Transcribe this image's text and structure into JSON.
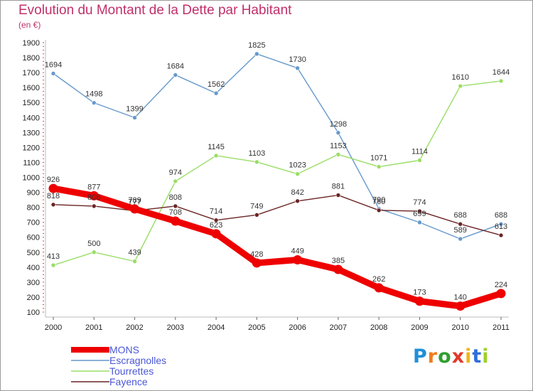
{
  "header": {
    "title": "Evolution du Montant de la Dette par Habitant",
    "subtitle": "(en €)"
  },
  "brand": {
    "logo_text": "Proxiti"
  },
  "chart_data": {
    "type": "line",
    "title": "Evolution du Montant de la Dette par Habitant",
    "subtitle": "(en €)",
    "xlabel": "",
    "ylabel": "",
    "x": [
      "2000",
      "2001",
      "2002",
      "2003",
      "2004",
      "2005",
      "2006",
      "2007",
      "2008",
      "2009",
      "2010",
      "2011"
    ],
    "ylim": [
      100,
      1900
    ],
    "yticks": [
      100,
      200,
      300,
      400,
      500,
      600,
      700,
      800,
      900,
      1000,
      1100,
      1200,
      1300,
      1400,
      1500,
      1600,
      1700,
      1800,
      1900
    ],
    "grid": false,
    "legend_position": "bottom-left",
    "series": [
      {
        "name": "MONS",
        "color": "#ee0000",
        "emphasis": true,
        "values": [
          926,
          877,
          789,
          708,
          623,
          428,
          449,
          385,
          262,
          173,
          140,
          224
        ]
      },
      {
        "name": "Escragnolles",
        "color": "#6699cc",
        "values": [
          1694,
          1498,
          1399,
          1684,
          1562,
          1825,
          1730,
          1298,
          790,
          699,
          589,
          688
        ]
      },
      {
        "name": "Tourrettes",
        "color": "#99dd66",
        "values": [
          413,
          500,
          439,
          974,
          1145,
          1103,
          1023,
          1153,
          1071,
          1114,
          1610,
          1644
        ]
      },
      {
        "name": "Fayence",
        "color": "#6b2424",
        "values": [
          818,
          808,
          777,
          808,
          714,
          749,
          842,
          881,
          780,
          774,
          688,
          613
        ]
      }
    ]
  }
}
